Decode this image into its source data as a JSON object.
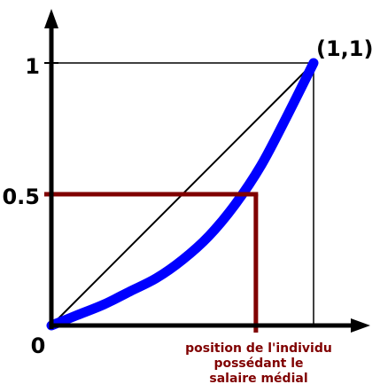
{
  "chart_data": {
    "type": "line",
    "title": "",
    "xlabel": "",
    "ylabel": "",
    "xlim": [
      0,
      1.2
    ],
    "ylim": [
      0,
      1.2
    ],
    "x_tick_labels": [
      "0"
    ],
    "y_tick_labels": [
      "0.5",
      "1"
    ],
    "y_ticks": [
      0.5,
      1
    ],
    "end_point_label": "(1,1)",
    "series": [
      {
        "color": "#0000ff",
        "kind": "lorenz_curve",
        "points": [
          {
            "x": 0.0,
            "y": 0.0
          },
          {
            "x": 0.1,
            "y": 0.04
          },
          {
            "x": 0.2,
            "y": 0.08
          },
          {
            "x": 0.3,
            "y": 0.13
          },
          {
            "x": 0.4,
            "y": 0.18
          },
          {
            "x": 0.5,
            "y": 0.25
          },
          {
            "x": 0.6,
            "y": 0.34
          },
          {
            "x": 0.7,
            "y": 0.46
          },
          {
            "x": 0.8,
            "y": 0.61
          },
          {
            "x": 0.9,
            "y": 0.8
          },
          {
            "x": 1.0,
            "y": 1.0
          }
        ]
      },
      {
        "color": "#000000",
        "kind": "equality_line",
        "points": [
          {
            "x": 0,
            "y": 0
          },
          {
            "x": 1,
            "y": 1
          }
        ]
      }
    ],
    "median": {
      "color": "#800000",
      "x": 0.78,
      "y": 0.5,
      "annotation": [
        "position de l'individu",
        "possédant le",
        "salaire médial"
      ]
    },
    "reference_lines": {
      "y_one": 1,
      "x_one": 1
    }
  }
}
